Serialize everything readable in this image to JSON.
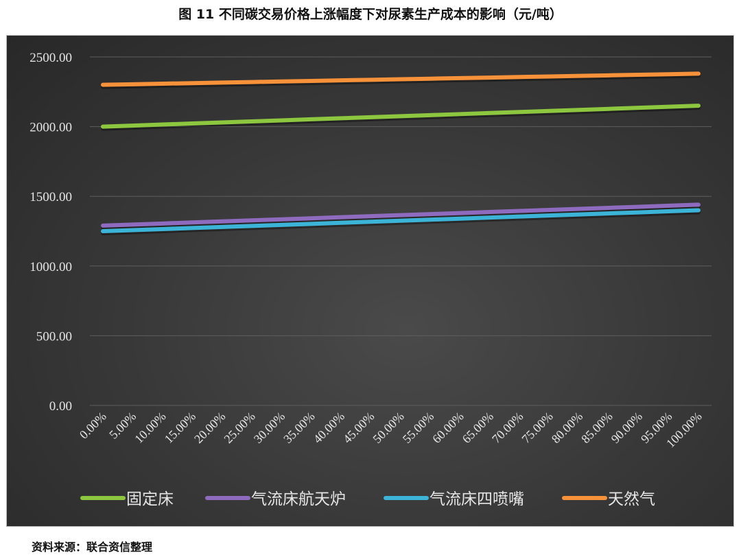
{
  "title": "图 11  不同碳交易价格上涨幅度下对尿素生产成本的影响（元/吨）",
  "source": "资料来源：联合资信整理",
  "chart_data": {
    "type": "line",
    "title": "图 11  不同碳交易价格上涨幅度下对尿素生产成本的影响（元/吨）",
    "categories": [
      "0.00%",
      "5.00%",
      "10.00%",
      "15.00%",
      "20.00%",
      "25.00%",
      "30.00%",
      "35.00%",
      "40.00%",
      "45.00%",
      "50.00%",
      "55.00%",
      "60.00%",
      "65.00%",
      "70.00%",
      "75.00%",
      "80.00%",
      "85.00%",
      "90.00%",
      "95.00%",
      "100.00%"
    ],
    "yticks": [
      "0.00",
      "500.00",
      "1000.00",
      "1500.00",
      "2000.00",
      "2500.00"
    ],
    "ylim": [
      0,
      2500
    ],
    "grid": true,
    "legend": "bottom",
    "series": [
      {
        "name": "固定床",
        "color": "#8dc63f",
        "values": [
          2000,
          2007.5,
          2015,
          2022.5,
          2030,
          2037.5,
          2045,
          2052.5,
          2060,
          2067.5,
          2075,
          2082.5,
          2090,
          2097.5,
          2105,
          2112.5,
          2120,
          2127.5,
          2135,
          2142.5,
          2150
        ]
      },
      {
        "name": "气流床航天炉",
        "color": "#8e6bbf",
        "values": [
          1290,
          1297.5,
          1305,
          1312.5,
          1320,
          1327.5,
          1335,
          1342.5,
          1350,
          1357.5,
          1365,
          1372.5,
          1380,
          1387.5,
          1395,
          1402.5,
          1410,
          1417.5,
          1425,
          1432.5,
          1440
        ]
      },
      {
        "name": "气流床四喷嘴",
        "color": "#3cb4d8",
        "values": [
          1250,
          1257.5,
          1265,
          1272.5,
          1280,
          1287.5,
          1295,
          1302.5,
          1310,
          1317.5,
          1325,
          1332.5,
          1340,
          1347.5,
          1355,
          1362.5,
          1370,
          1377.5,
          1385,
          1392.5,
          1400
        ]
      },
      {
        "name": "天然气",
        "color": "#f7923a",
        "values": [
          2300,
          2304,
          2308,
          2312,
          2316,
          2320,
          2324,
          2328,
          2332,
          2336,
          2340,
          2344,
          2348,
          2352,
          2356,
          2360,
          2364,
          2368,
          2372,
          2376,
          2380
        ]
      }
    ]
  }
}
